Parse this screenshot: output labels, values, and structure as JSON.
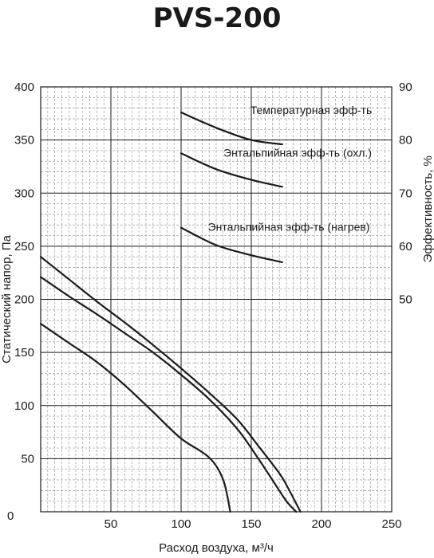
{
  "chart_data": {
    "type": "line",
    "title": "PVS-200",
    "xlabel": "Расход воздуха, м³/ч",
    "ylabel": "Статический напор, Па",
    "y2label": "Эффективность, %",
    "xlim": [
      0,
      250
    ],
    "ylim": [
      0,
      400
    ],
    "y2lim": [
      10,
      90
    ],
    "x_ticks": [
      "50",
      "100",
      "150",
      "200",
      "250"
    ],
    "x_tick_values": [
      50,
      100,
      150,
      200,
      250
    ],
    "y_ticks": [
      "0",
      "50",
      "100",
      "150",
      "200",
      "250",
      "300",
      "350",
      "400"
    ],
    "y_tick_values": [
      0,
      50,
      100,
      150,
      200,
      250,
      300,
      350,
      400
    ],
    "y2_ticks": [
      "50",
      "60",
      "70",
      "80",
      "90"
    ],
    "y2_tick_values": [
      50,
      60,
      70,
      80,
      90
    ],
    "grid": true,
    "series": [
      {
        "axis": "left",
        "x": [
          0,
          20,
          40,
          60,
          80,
          100,
          120,
          130,
          135
        ],
        "y": [
          177,
          159,
          141,
          119,
          94,
          69,
          51,
          30,
          0
        ]
      },
      {
        "axis": "left",
        "x": [
          0,
          20,
          40,
          60,
          80,
          100,
          120,
          140,
          155,
          165,
          175,
          182
        ],
        "y": [
          221,
          203,
          186,
          168,
          150,
          129,
          106,
          78,
          50,
          30,
          10,
          0
        ]
      },
      {
        "axis": "left",
        "x": [
          0,
          20,
          40,
          60,
          80,
          100,
          120,
          140,
          155,
          165,
          173,
          185
        ],
        "y": [
          240,
          219,
          198,
          178,
          157,
          135,
          112,
          87,
          62,
          45,
          30,
          0
        ]
      },
      {
        "axis": "right",
        "name": "Температурная эфф-ть",
        "label": "Температурная эфф-ть",
        "x": [
          100,
          125,
          150,
          172
        ],
        "y": [
          85.2,
          82.3,
          80.0,
          79.2
        ]
      },
      {
        "axis": "right",
        "name": "Энтальпийная эфф-ть (охл.)",
        "label": "Энтальпийная эфф-ть (охл.)",
        "x": [
          100,
          125,
          150,
          172
        ],
        "y": [
          77.5,
          74.5,
          72.5,
          71.2
        ]
      },
      {
        "axis": "right",
        "name": "Энтальпийная эфф-ть (нагрев)",
        "label": "Энтальпийная эфф-ть (нагрев)",
        "x": [
          100,
          125,
          150,
          172
        ],
        "y": [
          63.5,
          60.2,
          58.3,
          57.0
        ]
      }
    ]
  }
}
